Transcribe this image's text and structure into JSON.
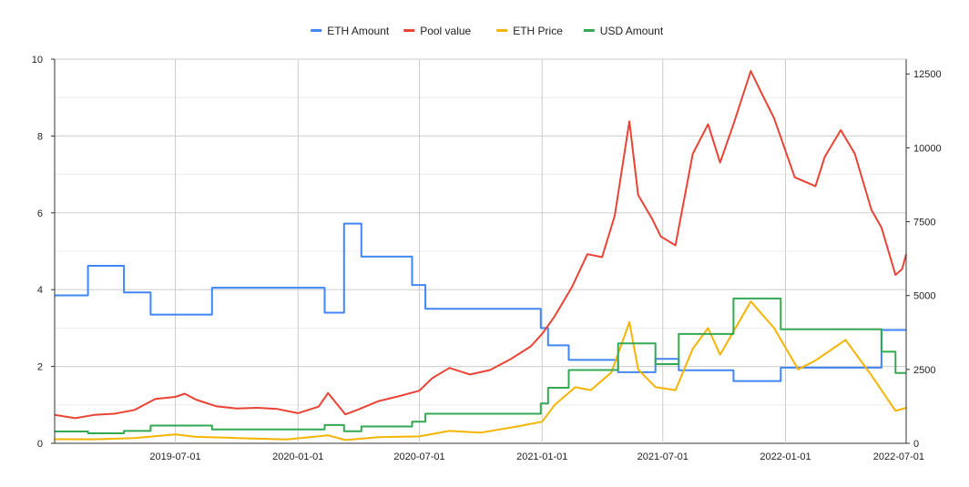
{
  "chart_data": {
    "type": "line",
    "title": "",
    "xlabel": "",
    "ylabel_left": "",
    "ylabel_right": "",
    "grid": true,
    "legend_position": "top",
    "x_range": [
      "2019-01-01",
      "2022-07-01"
    ],
    "y_left_range": [
      0,
      10
    ],
    "y_right_range": [
      0,
      13000
    ],
    "x_ticks": [
      "2019-07-01",
      "2020-01-01",
      "2020-07-01",
      "2021-01-01",
      "2021-07-01",
      "2022-01-01",
      "2022-07-01"
    ],
    "y_left_ticks": [
      "0",
      "2",
      "4",
      "6",
      "8",
      "10"
    ],
    "y_right_ticks": [
      "0",
      "2500",
      "5000",
      "7500",
      "10000",
      "12500"
    ],
    "series": [
      {
        "name": "ETH Amount",
        "axis": "left",
        "color": "#4285f4",
        "step": true,
        "points": [
          [
            "2019-01-01",
            3.85
          ],
          [
            "2019-02-20",
            4.62
          ],
          [
            "2019-04-15",
            3.93
          ],
          [
            "2019-05-25",
            3.35
          ],
          [
            "2019-08-25",
            4.05
          ],
          [
            "2020-02-10",
            3.4
          ],
          [
            "2020-03-10",
            5.72
          ],
          [
            "2020-04-05",
            4.86
          ],
          [
            "2020-06-20",
            4.12
          ],
          [
            "2020-07-10",
            3.5
          ],
          [
            "2020-12-30",
            3.0
          ],
          [
            "2021-01-10",
            2.55
          ],
          [
            "2021-02-10",
            2.17
          ],
          [
            "2021-04-25",
            1.85
          ],
          [
            "2021-06-20",
            2.2
          ],
          [
            "2021-07-25",
            1.9
          ],
          [
            "2021-10-15",
            1.62
          ],
          [
            "2021-12-25",
            1.97
          ],
          [
            "2022-05-25",
            2.95
          ],
          [
            "2022-07-01",
            2.95
          ]
        ]
      },
      {
        "name": "Pool value",
        "axis": "right",
        "color": "#ea4335",
        "step": false,
        "points": [
          [
            "2019-01-01",
            960
          ],
          [
            "2019-02-01",
            850
          ],
          [
            "2019-03-01",
            960
          ],
          [
            "2019-04-01",
            1000
          ],
          [
            "2019-05-01",
            1130
          ],
          [
            "2019-06-01",
            1500
          ],
          [
            "2019-07-01",
            1570
          ],
          [
            "2019-07-15",
            1680
          ],
          [
            "2019-08-01",
            1480
          ],
          [
            "2019-09-01",
            1250
          ],
          [
            "2019-10-01",
            1180
          ],
          [
            "2019-11-01",
            1200
          ],
          [
            "2019-12-01",
            1160
          ],
          [
            "2020-01-01",
            1020
          ],
          [
            "2020-02-01",
            1240
          ],
          [
            "2020-02-15",
            1700
          ],
          [
            "2020-03-12",
            980
          ],
          [
            "2020-04-01",
            1150
          ],
          [
            "2020-05-01",
            1430
          ],
          [
            "2020-06-01",
            1600
          ],
          [
            "2020-07-01",
            1780
          ],
          [
            "2020-07-20",
            2200
          ],
          [
            "2020-08-15",
            2550
          ],
          [
            "2020-09-15",
            2330
          ],
          [
            "2020-10-15",
            2480
          ],
          [
            "2020-11-15",
            2850
          ],
          [
            "2020-12-15",
            3280
          ],
          [
            "2021-01-01",
            3700
          ],
          [
            "2021-01-20",
            4300
          ],
          [
            "2021-02-15",
            5300
          ],
          [
            "2021-03-10",
            6400
          ],
          [
            "2021-04-01",
            6300
          ],
          [
            "2021-04-20",
            7700
          ],
          [
            "2021-05-12",
            10900
          ],
          [
            "2021-05-25",
            8400
          ],
          [
            "2021-06-15",
            7600
          ],
          [
            "2021-06-28",
            7000
          ],
          [
            "2021-07-20",
            6700
          ],
          [
            "2021-08-15",
            9800
          ],
          [
            "2021-09-07",
            10800
          ],
          [
            "2021-09-25",
            9500
          ],
          [
            "2021-10-15",
            10800
          ],
          [
            "2021-11-10",
            12600
          ],
          [
            "2021-11-25",
            11900
          ],
          [
            "2021-12-15",
            11000
          ],
          [
            "2022-01-15",
            9000
          ],
          [
            "2022-02-15",
            8700
          ],
          [
            "2022-03-01",
            9700
          ],
          [
            "2022-03-25",
            10600
          ],
          [
            "2022-04-15",
            9800
          ],
          [
            "2022-05-10",
            7900
          ],
          [
            "2022-05-25",
            7300
          ],
          [
            "2022-06-15",
            5700
          ],
          [
            "2022-06-25",
            5900
          ],
          [
            "2022-07-01",
            6400
          ]
        ]
      },
      {
        "name": "ETH Price",
        "axis": "right",
        "color": "#f4b400",
        "step": false,
        "points": [
          [
            "2019-01-01",
            140
          ],
          [
            "2019-03-01",
            135
          ],
          [
            "2019-05-01",
            180
          ],
          [
            "2019-06-15",
            270
          ],
          [
            "2019-07-01",
            300
          ],
          [
            "2019-08-01",
            220
          ],
          [
            "2019-10-01",
            180
          ],
          [
            "2019-12-15",
            130
          ],
          [
            "2020-02-15",
            270
          ],
          [
            "2020-03-12",
            110
          ],
          [
            "2020-05-01",
            210
          ],
          [
            "2020-07-01",
            235
          ],
          [
            "2020-08-15",
            420
          ],
          [
            "2020-10-01",
            360
          ],
          [
            "2020-11-20",
            550
          ],
          [
            "2021-01-01",
            730
          ],
          [
            "2021-01-20",
            1300
          ],
          [
            "2021-02-20",
            1900
          ],
          [
            "2021-03-15",
            1800
          ],
          [
            "2021-04-15",
            2400
          ],
          [
            "2021-05-12",
            4100
          ],
          [
            "2021-05-25",
            2500
          ],
          [
            "2021-06-20",
            1900
          ],
          [
            "2021-07-20",
            1800
          ],
          [
            "2021-08-15",
            3200
          ],
          [
            "2021-09-07",
            3900
          ],
          [
            "2021-09-25",
            3000
          ],
          [
            "2021-11-10",
            4800
          ],
          [
            "2021-12-15",
            3900
          ],
          [
            "2022-01-20",
            2500
          ],
          [
            "2022-02-15",
            2800
          ],
          [
            "2022-04-01",
            3500
          ],
          [
            "2022-05-10",
            2300
          ],
          [
            "2022-06-15",
            1100
          ],
          [
            "2022-07-01",
            1200
          ]
        ]
      },
      {
        "name": "USD Amount",
        "axis": "right",
        "color": "#34a853",
        "step": true,
        "points": [
          [
            "2019-01-01",
            400
          ],
          [
            "2019-02-20",
            340
          ],
          [
            "2019-04-15",
            420
          ],
          [
            "2019-05-25",
            600
          ],
          [
            "2019-08-25",
            470
          ],
          [
            "2020-02-10",
            620
          ],
          [
            "2020-03-10",
            410
          ],
          [
            "2020-04-05",
            570
          ],
          [
            "2020-06-20",
            730
          ],
          [
            "2020-07-10",
            1000
          ],
          [
            "2020-12-30",
            1350
          ],
          [
            "2021-01-10",
            1880
          ],
          [
            "2021-02-10",
            2480
          ],
          [
            "2021-04-25",
            3380
          ],
          [
            "2021-06-20",
            2680
          ],
          [
            "2021-07-25",
            3700
          ],
          [
            "2021-10-15",
            4900
          ],
          [
            "2021-12-25",
            3860
          ],
          [
            "2022-05-25",
            3100
          ],
          [
            "2022-06-15",
            2380
          ],
          [
            "2022-07-01",
            2380
          ]
        ]
      }
    ]
  }
}
